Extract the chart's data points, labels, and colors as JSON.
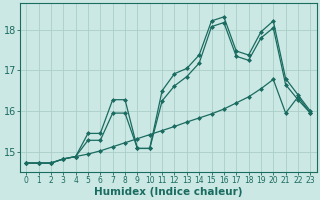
{
  "xlabel": "Humidex (Indice chaleur)",
  "bg_color": "#cce8e4",
  "grid_color": "#aacfc8",
  "line_color": "#1a6b60",
  "x": [
    0,
    1,
    2,
    3,
    4,
    5,
    6,
    7,
    8,
    9,
    10,
    11,
    12,
    13,
    14,
    15,
    16,
    17,
    18,
    19,
    20,
    21,
    22,
    23
  ],
  "y_straight": [
    14.72,
    14.72,
    14.72,
    14.82,
    14.88,
    14.94,
    15.02,
    15.12,
    15.22,
    15.32,
    15.42,
    15.52,
    15.62,
    15.73,
    15.83,
    15.93,
    16.05,
    16.2,
    16.35,
    16.55,
    16.78,
    15.95,
    16.35,
    15.95
  ],
  "y_jagged": [
    14.72,
    14.72,
    14.72,
    14.82,
    14.88,
    15.45,
    15.45,
    16.28,
    16.28,
    15.08,
    15.08,
    16.5,
    16.92,
    17.05,
    17.38,
    18.22,
    18.32,
    17.48,
    17.38,
    17.95,
    18.22,
    16.8,
    16.4,
    16.0
  ],
  "y_smooth": [
    14.72,
    14.72,
    14.72,
    14.82,
    14.88,
    15.28,
    15.28,
    15.95,
    15.95,
    15.08,
    15.08,
    16.25,
    16.62,
    16.85,
    17.18,
    18.08,
    18.18,
    17.35,
    17.25,
    17.8,
    18.05,
    16.65,
    16.28,
    15.95
  ],
  "ylim": [
    14.5,
    18.65
  ],
  "yticks": [
    15,
    16,
    17,
    18
  ],
  "xlim": [
    -0.5,
    23.5
  ],
  "xtick_fontsize": 5.5,
  "ytick_fontsize": 7,
  "xlabel_fontsize": 7.5
}
